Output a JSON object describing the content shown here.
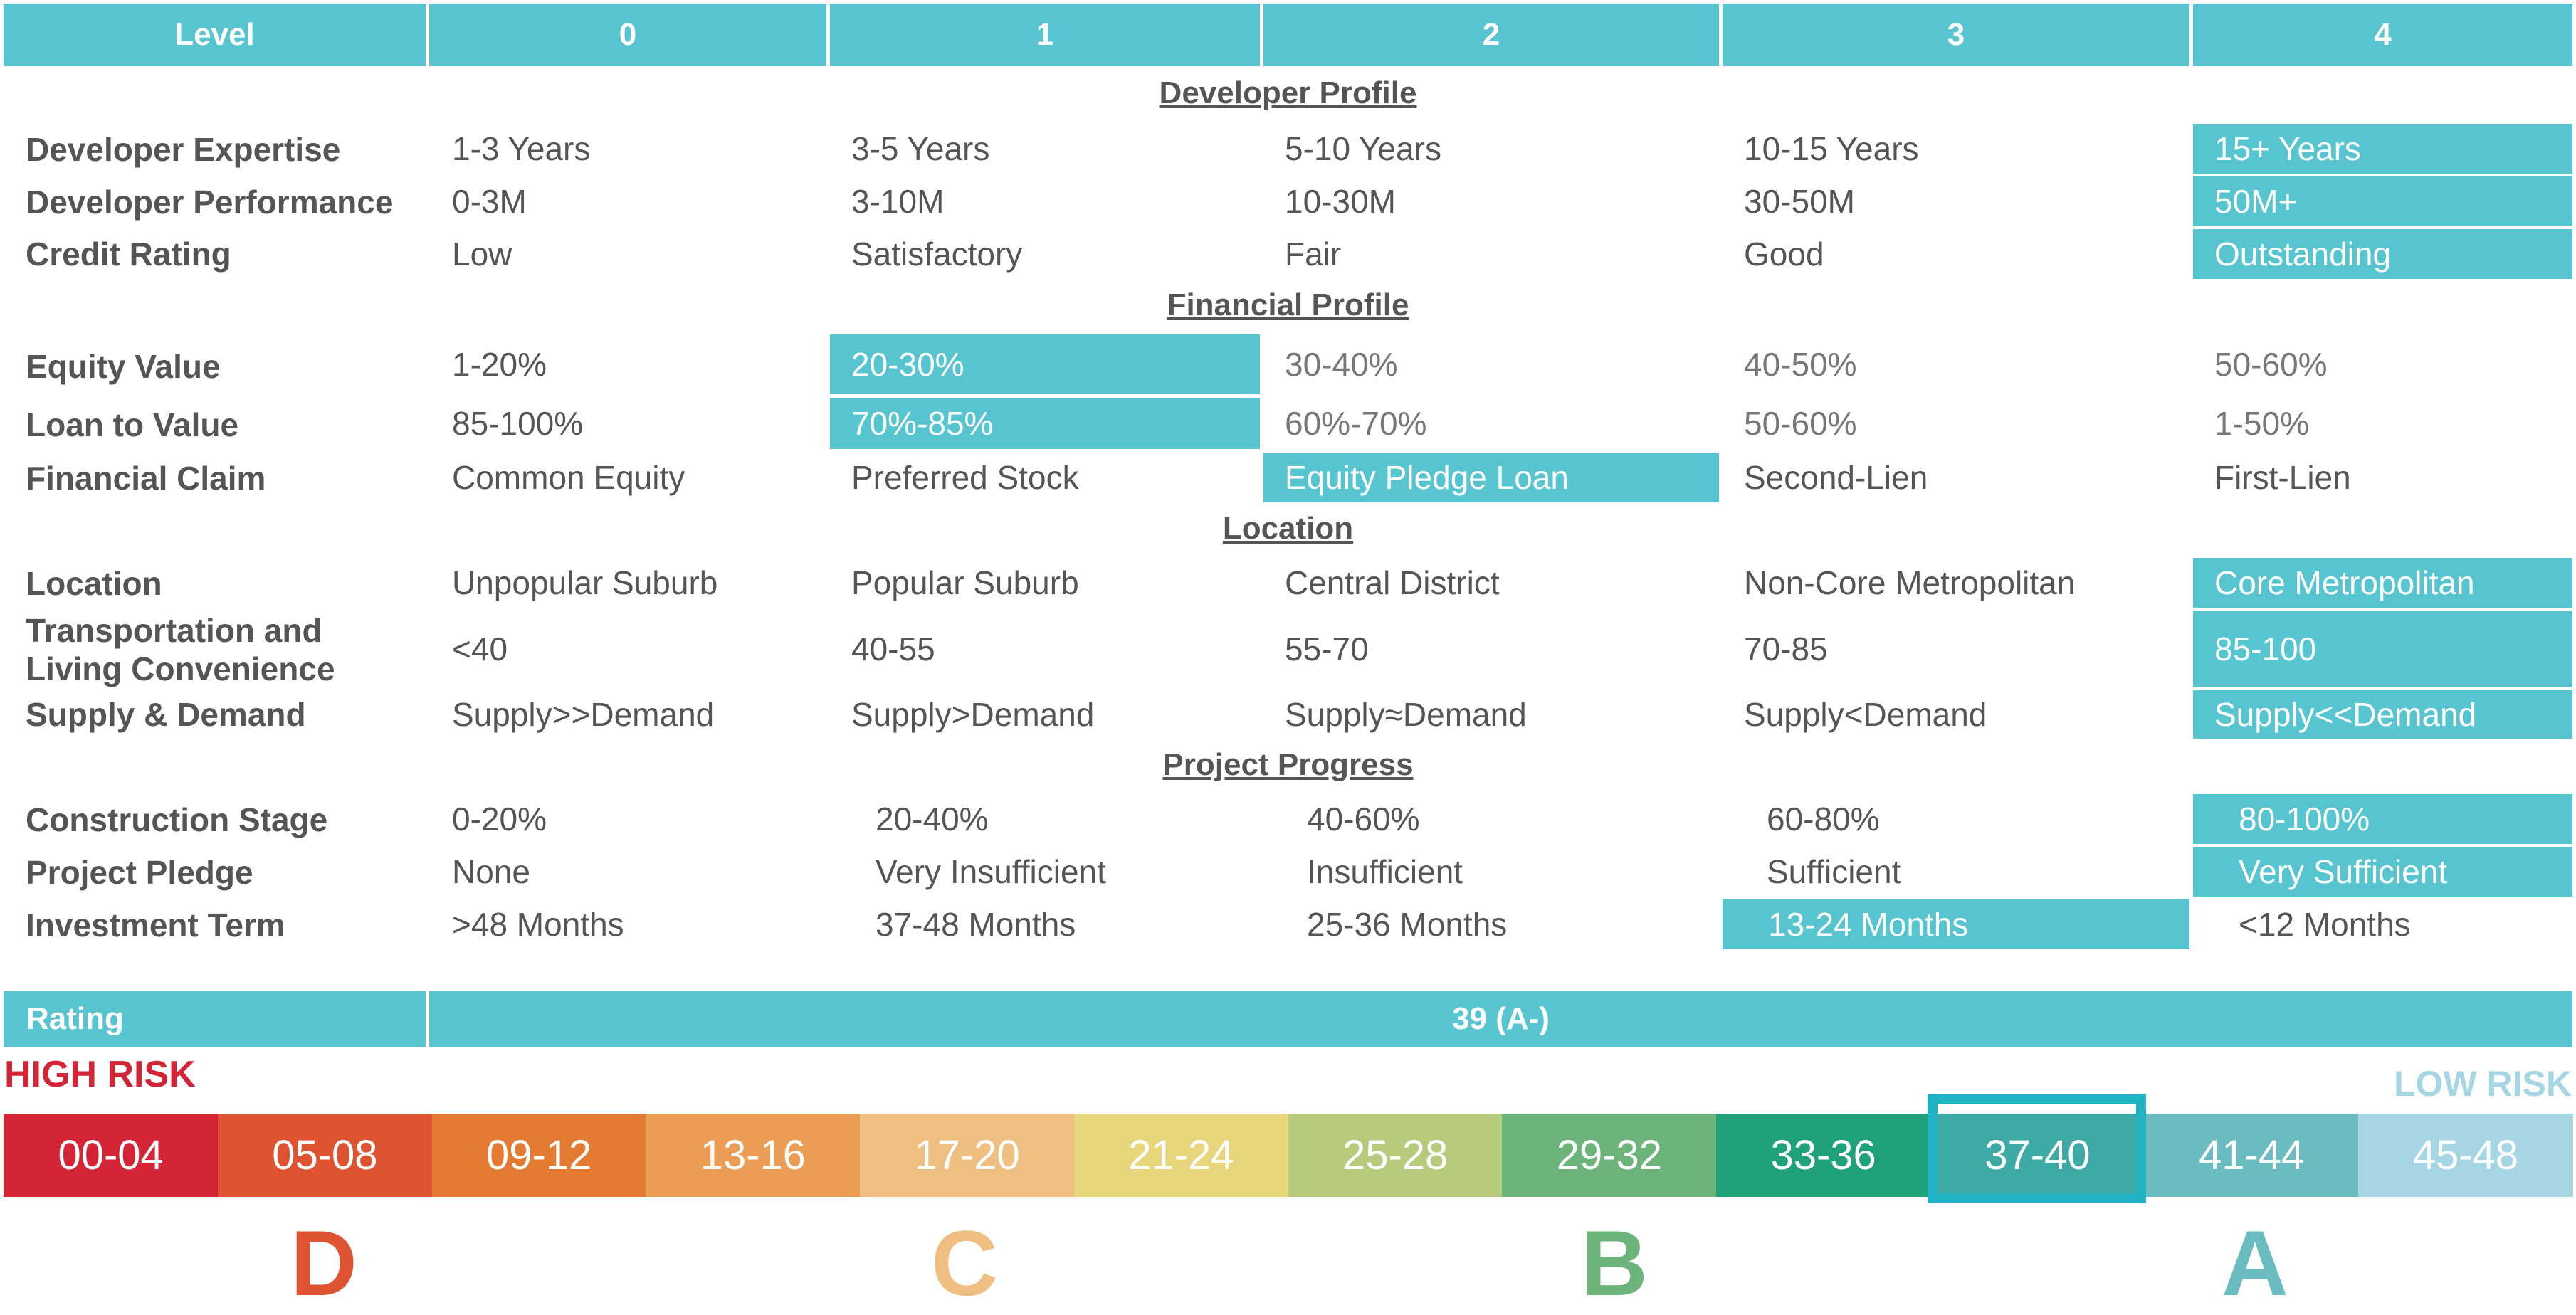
{
  "header": {
    "level_label": "Level",
    "levels": [
      "0",
      "1",
      "2",
      "3",
      "4"
    ]
  },
  "sections": [
    {
      "title": "Developer Profile",
      "rows": [
        {
          "label": "Developer Expertise",
          "values": [
            "1-3 Years",
            "3-5 Years",
            "5-10 Years",
            "10-15 Years",
            "15+ Years"
          ],
          "selected": 4
        },
        {
          "label": "Developer Performance",
          "values": [
            "0-3M",
            "3-10M",
            "10-30M",
            "30-50M",
            "50M+"
          ],
          "selected": 4
        },
        {
          "label": "Credit Rating",
          "values": [
            "Low",
            "Satisfactory",
            "Fair",
            "Good",
            "Outstanding"
          ],
          "selected": 4
        }
      ]
    },
    {
      "title": "Financial Profile",
      "rows": [
        {
          "label": "Equity Value",
          "values": [
            "1-20%",
            "20-30%",
            "30-40%",
            "40-50%",
            "50-60%"
          ],
          "selected": 1
        },
        {
          "label": "Loan to Value",
          "values": [
            "85-100%",
            "70%-85%",
            "60%-70%",
            "50-60%",
            "1-50%"
          ],
          "selected": 1
        },
        {
          "label": "Financial Claim",
          "values": [
            "Common Equity",
            "Preferred Stock",
            "Equity Pledge Loan",
            "Second-Lien",
            "First-Lien"
          ],
          "selected": 2
        }
      ]
    },
    {
      "title": "Location",
      "rows": [
        {
          "label": "Location",
          "values": [
            "Unpopular Suburb",
            "Popular Suburb",
            "Central District",
            "Non-Core Metropolitan",
            "Core Metropolitan"
          ],
          "selected": 4
        },
        {
          "label_line1": "Transportation and",
          "label_line2": "Living Convenience",
          "values": [
            "<40",
            "40-55",
            "55-70",
            "70-85",
            "85-100"
          ],
          "selected": 4
        },
        {
          "label": "Supply & Demand",
          "values": [
            "Supply>>Demand",
            "Supply>Demand",
            "Supply≈Demand",
            "Supply<Demand",
            "Supply<<Demand"
          ],
          "selected": 4
        }
      ]
    },
    {
      "title": "Project Progress",
      "rows": [
        {
          "label": "Construction Stage",
          "values": [
            "0-20%",
            "20-40%",
            "40-60%",
            "60-80%",
            "80-100%"
          ],
          "selected": 4
        },
        {
          "label": "Project Pledge",
          "values": [
            "None",
            "Very Insufficient",
            "Insufficient",
            "Sufficient",
            "Very Sufficient"
          ],
          "selected": 4
        },
        {
          "label": "Investment Term",
          "values": [
            ">48 Months",
            "37-48 Months",
            "25-36 Months",
            "13-24 Months",
            "<12 Months"
          ],
          "selected": 3
        }
      ]
    }
  ],
  "rating": {
    "label": "Rating",
    "value": "39 (A-)"
  },
  "scale": {
    "high_risk": "HIGH RISK",
    "low_risk": "LOW RISK",
    "segments": [
      {
        "range": "00-04",
        "color": "#d42537"
      },
      {
        "range": "05-08",
        "color": "#de5331"
      },
      {
        "range": "09-12",
        "color": "#e37c32"
      },
      {
        "range": "13-16",
        "color": "#eb9c55"
      },
      {
        "range": "17-20",
        "color": "#efbf82"
      },
      {
        "range": "21-24",
        "color": "#e8d67c"
      },
      {
        "range": "25-28",
        "color": "#b6cc7c"
      },
      {
        "range": "29-32",
        "color": "#6db47a"
      },
      {
        "range": "33-36",
        "color": "#1fa27a"
      },
      {
        "range": "37-40",
        "color": "#3eaaa6"
      },
      {
        "range": "41-44",
        "color": "#6abcc1"
      },
      {
        "range": "45-48",
        "color": "#a6d6e4"
      }
    ],
    "selected_segment": 9,
    "grades": [
      {
        "letter": "D",
        "color": "#de5331"
      },
      {
        "letter": "C",
        "color": "#efbf82"
      },
      {
        "letter": "B",
        "color": "#6db47a"
      },
      {
        "letter": "A",
        "color": "#6abcc1"
      }
    ]
  },
  "colors": {
    "accent": "#57c5cf",
    "high_risk": "#d42537",
    "low_risk": "#a6d6e4"
  }
}
